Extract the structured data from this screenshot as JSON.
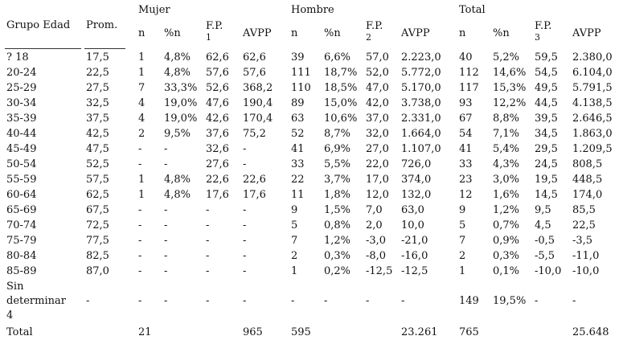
{
  "table": {
    "header": {
      "group_label": "Grupo Edad",
      "mean_label": "Prom.",
      "groups": [
        {
          "name": "Mujer",
          "columns": [
            "n",
            "%n",
            "F.P.",
            "AVPP"
          ],
          "fp_note": "1"
        },
        {
          "name": "Hombre",
          "columns": [
            "n",
            "%n",
            "F.P.",
            "AVPP"
          ],
          "fp_note": "2"
        },
        {
          "name": "Total",
          "columns": [
            "n",
            "%n",
            "F.P.",
            "AVPP"
          ],
          "fp_note": "3"
        }
      ]
    },
    "rows": [
      [
        "? 18",
        "17,5",
        "1",
        "4,8%",
        "62,6",
        "62,6",
        "39",
        "6,6%",
        "57,0",
        "2.223,0",
        "40",
        "5,2%",
        "59,5",
        "2.380,0"
      ],
      [
        "20-24",
        "22,5",
        "1",
        "4,8%",
        "57,6",
        "57,6",
        "111",
        "18,7%",
        "52,0",
        "5.772,0",
        "112",
        "14,6%",
        "54,5",
        "6.104,0"
      ],
      [
        "25-29",
        "27,5",
        "7",
        "33,3%",
        "52,6",
        "368,2",
        "110",
        "18,5%",
        "47,0",
        "5.170,0",
        "117",
        "15,3%",
        "49,5",
        "5.791,5"
      ],
      [
        "30-34",
        "32,5",
        "4",
        "19,0%",
        "47,6",
        "190,4",
        "89",
        "15,0%",
        "42,0",
        "3.738,0",
        "93",
        "12,2%",
        "44,5",
        "4.138,5"
      ],
      [
        "35-39",
        "37,5",
        "4",
        "19,0%",
        "42,6",
        "170,4",
        "63",
        "10,6%",
        "37,0",
        "2.331,0",
        "67",
        "8,8%",
        "39,5",
        "2.646,5"
      ],
      [
        "40-44",
        "42,5",
        "2",
        "9,5%",
        "37,6",
        "75,2",
        "52",
        "8,7%",
        "32,0",
        "1.664,0",
        "54",
        "7,1%",
        "34,5",
        "1.863,0"
      ],
      [
        "45-49",
        "47,5",
        "-",
        "-",
        "32,6",
        "-",
        "41",
        "6,9%",
        "27,0",
        "1.107,0",
        "41",
        "5,4%",
        "29,5",
        "1.209,5"
      ],
      [
        "50-54",
        "52,5",
        "-",
        "-",
        "27,6",
        "-",
        "33",
        "5,5%",
        "22,0",
        "726,0",
        "33",
        "4,3%",
        "24,5",
        "808,5"
      ],
      [
        "55-59",
        "57,5",
        "1",
        "4,8%",
        "22,6",
        "22,6",
        "22",
        "3,7%",
        "17,0",
        "374,0",
        "23",
        "3,0%",
        "19,5",
        "448,5"
      ],
      [
        "60-64",
        "62,5",
        "1",
        "4,8%",
        "17,6",
        "17,6",
        "11",
        "1,8%",
        "12,0",
        "132,0",
        "12",
        "1,6%",
        "14,5",
        "174,0"
      ],
      [
        "65-69",
        "67,5",
        "-",
        "-",
        "-",
        "-",
        "9",
        "1,5%",
        "7,0",
        "63,0",
        "9",
        "1,2%",
        "9,5",
        "85,5"
      ],
      [
        "70-74",
        "72,5",
        "-",
        "-",
        "-",
        "-",
        "5",
        "0,8%",
        "2,0",
        "10,0",
        "5",
        "0,7%",
        "4,5",
        "22,5"
      ],
      [
        "75-79",
        "77,5",
        "-",
        "-",
        "-",
        "-",
        "7",
        "1,2%",
        "-3,0",
        "-21,0",
        "7",
        "0,9%",
        "-0,5",
        "-3,5"
      ],
      [
        "80-84",
        "82,5",
        "-",
        "-",
        "-",
        "-",
        "2",
        "0,3%",
        "-8,0",
        "-16,0",
        "2",
        "0,3%",
        "-5,5",
        "-11,0"
      ],
      [
        "85-89",
        "87,0",
        "-",
        "-",
        "-",
        "-",
        "1",
        "0,2%",
        "-12,5",
        "-12,5",
        "1",
        "0,1%",
        "-10,0",
        "-10,0"
      ],
      [
        "Sin determinar 4",
        "-",
        "-",
        "-",
        "-",
        "-",
        "-",
        "-",
        "-",
        "-",
        "149",
        "19,5%",
        "-",
        "-"
      ],
      [
        "Total",
        null,
        "21",
        null,
        null,
        "965",
        "595",
        null,
        null,
        "23.261",
        "765",
        null,
        null,
        "25.648"
      ]
    ]
  }
}
